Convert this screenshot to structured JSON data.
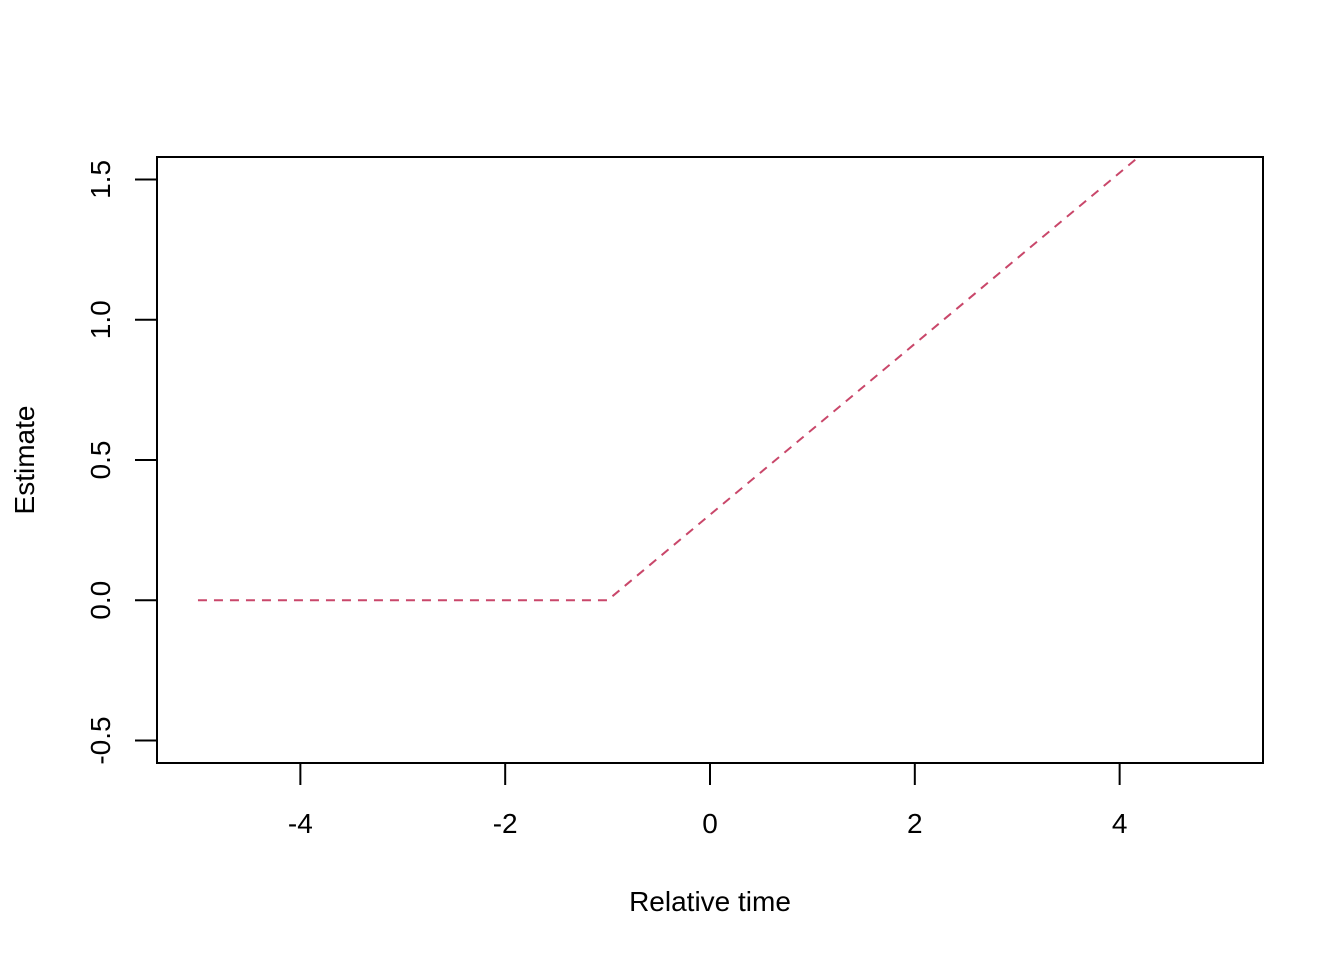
{
  "chart_data": {
    "type": "line",
    "title": "",
    "xlabel": "Relative time",
    "ylabel": "Estimate",
    "xlim": [
      -5.4,
      5.4
    ],
    "ylim": [
      -0.58,
      1.58
    ],
    "xticks": [
      -4,
      -2,
      0,
      2,
      4
    ],
    "yticks": [
      -0.5,
      0.0,
      0.5,
      1.0,
      1.5
    ],
    "xtick_labels": [
      "-4",
      "-2",
      "0",
      "2",
      "4"
    ],
    "ytick_labels": [
      "-0.5",
      "0.0",
      "0.5",
      "1.0",
      "1.5"
    ],
    "grid": false,
    "legend": "none",
    "series": [
      {
        "line_style": "dashed",
        "color": "#C9476A",
        "x": [
          -5,
          -1,
          4.25
        ],
        "y": [
          0,
          0,
          1.6
        ]
      }
    ]
  }
}
